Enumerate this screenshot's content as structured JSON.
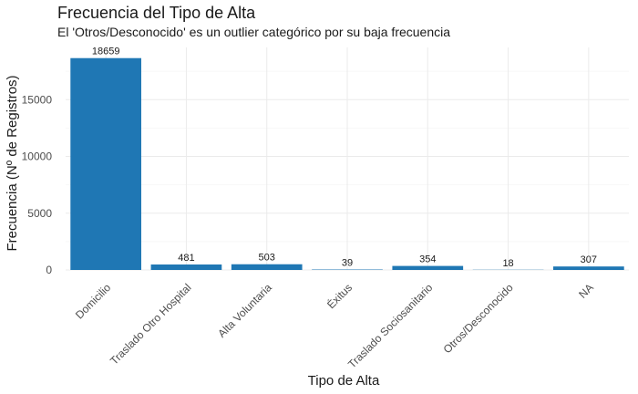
{
  "chart_data": {
    "type": "bar",
    "title": "Frecuencia del Tipo de Alta",
    "subtitle": "El 'Otros/Desconocido' es un outlier categórico por su baja frecuencia",
    "xlabel": "Tipo de Alta",
    "ylabel": "Frecuencia (Nº de Registros)",
    "categories": [
      "Domicilio",
      "Traslado Otro Hospital",
      "Alta Voluntaria",
      "Éxitus",
      "Traslado Sociosanitario",
      "Otros/Desconocido",
      "NA"
    ],
    "values": [
      18659,
      481,
      503,
      39,
      354,
      18,
      307
    ],
    "yticks": [
      0,
      5000,
      10000,
      15000
    ],
    "ylim": [
      0,
      19600
    ],
    "grid": true,
    "legend": "none",
    "bar_color": "#1f77b4"
  }
}
